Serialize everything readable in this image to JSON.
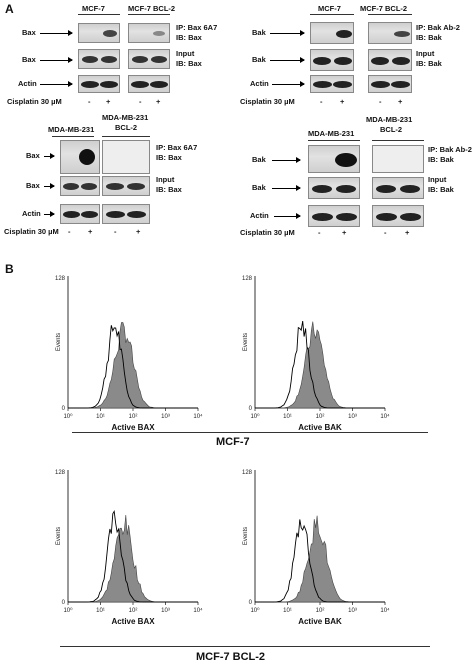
{
  "panel_a": {
    "letter": "A",
    "top_left": {
      "header1": "MCF-7",
      "header2": "MCF-7 BCL-2",
      "row1": "Bax",
      "row2": "Bax",
      "row3": "Actin",
      "ip1_line1": "IP: Bax 6A7",
      "ip1_line2": "IB: Bax",
      "ip2_line1": "Input",
      "ip2_line2": "IB: Bax",
      "treatment": "Cisplatin 30 µM",
      "signs": [
        "-",
        "+",
        "-",
        "+"
      ]
    },
    "top_right": {
      "header1": "MCF-7",
      "header2": "MCF-7 BCL-2",
      "row1": "Bak",
      "row2": "Bak",
      "row3": "Actin",
      "ip1_line1": "IP: Bak Ab-2",
      "ip1_line2": "IB: Bak",
      "ip2_line1": "Input",
      "ip2_line2": "IB: Bak",
      "treatment": "Cisplatin 30 µM",
      "signs": [
        "-",
        "+",
        "-",
        "+"
      ]
    },
    "bottom_left": {
      "header1": "MDA-MB-231",
      "header2_line1": "MDA-MB-231",
      "header2_line2": "BCL-2",
      "row1": "Bax",
      "row2": "Bax",
      "row3": "Actin",
      "ip1_line1": "IP: Bax 6A7",
      "ip1_line2": "IB: Bax",
      "ip2_line1": "Input",
      "ip2_line2": "IB: Bax",
      "treatment": "Cisplatin 30 µM",
      "signs": [
        "-",
        "+",
        "-",
        "+"
      ]
    },
    "bottom_right": {
      "header1": "MDA-MB-231",
      "header2_line1": "MDA-MB-231",
      "header2_line2": "BCL-2",
      "row1": "Bak",
      "row2": "Bak",
      "row3": "Actin",
      "ip1_line1": "IP: Bak Ab-2",
      "ip1_line2": "IB: Bak",
      "ip2_line1": "Input",
      "ip2_line2": "IB: Bak",
      "treatment": "Cisplatin 30 µM",
      "signs": [
        "-",
        "+",
        "-",
        "+"
      ]
    }
  },
  "panel_b": {
    "letter": "B",
    "ylabel": "Events",
    "ymax_label": "128",
    "ymin_label": "0",
    "xticks": [
      "10⁰",
      "10¹",
      "10²",
      "10³",
      "10⁴"
    ],
    "plots": [
      {
        "xlabel": "Active BAX"
      },
      {
        "xlabel": "Active BAK"
      },
      {
        "xlabel": "Active BAX"
      },
      {
        "xlabel": "Active BAK"
      }
    ],
    "group1": "MCF-7",
    "group2": "MCF-7 BCL-2"
  }
}
